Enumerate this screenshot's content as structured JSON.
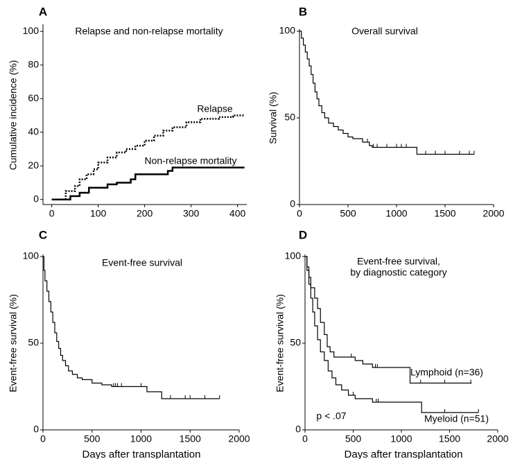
{
  "chart_data": [
    {
      "type": "step",
      "panel": "A",
      "title": "Relapse and non-relapse mortality",
      "y_label": "Cumulative incidence (%)",
      "xlim": [
        -10,
        420
      ],
      "ylim": [
        -3,
        103
      ],
      "xticks": [
        0,
        100,
        200,
        300,
        400
      ],
      "yticks": [
        0,
        20,
        40,
        60,
        80,
        100
      ],
      "series": [
        {
          "name": "Relapse",
          "color": "#000000",
          "style": "dotted",
          "width": 2.5,
          "x": [
            0,
            20,
            30,
            50,
            60,
            75,
            90,
            100,
            120,
            140,
            160,
            180,
            200,
            220,
            240,
            260,
            290,
            320,
            360,
            390,
            415
          ],
          "values": [
            0,
            0,
            5,
            8,
            12,
            15,
            18,
            22,
            25,
            28,
            30,
            32,
            35,
            38,
            41,
            43,
            46,
            48,
            49,
            50,
            50
          ]
        },
        {
          "name": "Non-relapse mortality",
          "color": "#000000",
          "style": "solid",
          "width": 2.5,
          "x": [
            0,
            30,
            40,
            60,
            80,
            120,
            140,
            170,
            180,
            250,
            260,
            415
          ],
          "values": [
            0,
            0,
            2,
            4,
            7,
            9,
            10,
            12,
            15,
            17,
            19,
            19
          ]
        }
      ]
    },
    {
      "type": "step",
      "panel": "B",
      "title": "Overall survival",
      "y_label": "Survival (%)",
      "xlim": [
        0,
        2000
      ],
      "ylim": [
        0,
        100
      ],
      "xticks": [
        0,
        500,
        1000,
        1500,
        2000
      ],
      "yticks": [
        0,
        50,
        100
      ],
      "series": [
        {
          "color": "#000000",
          "style": "solid",
          "width": 1.2,
          "x": [
            0,
            20,
            40,
            60,
            80,
            100,
            120,
            140,
            160,
            180,
            200,
            230,
            260,
            300,
            350,
            400,
            450,
            500,
            550,
            650,
            720,
            750,
            1210,
            1800
          ],
          "values": [
            100,
            96,
            92,
            88,
            84,
            80,
            75,
            70,
            65,
            61,
            57,
            53,
            50,
            47,
            45,
            43,
            41,
            39,
            38,
            36,
            34,
            33,
            29,
            29
          ],
          "censored": [
            700,
            760,
            800,
            900,
            1000,
            1050,
            1100,
            1300,
            1400,
            1500,
            1650,
            1750,
            1800
          ]
        }
      ]
    },
    {
      "type": "step",
      "panel": "C",
      "title": "Event-free survival",
      "y_label": "Event-free survival (%)",
      "x_label": "Days after transplantation",
      "xlim": [
        0,
        2000
      ],
      "ylim": [
        0,
        100
      ],
      "xticks": [
        0,
        500,
        1000,
        1500,
        2000
      ],
      "yticks": [
        0,
        50,
        100
      ],
      "series": [
        {
          "color": "#000000",
          "style": "solid",
          "width": 1.2,
          "x": [
            0,
            10,
            20,
            40,
            60,
            80,
            100,
            120,
            140,
            160,
            180,
            200,
            230,
            260,
            300,
            350,
            400,
            500,
            600,
            700,
            1060,
            1210,
            1800
          ],
          "values": [
            100,
            92,
            86,
            80,
            74,
            68,
            62,
            56,
            51,
            47,
            43,
            40,
            37,
            34,
            32,
            30,
            29,
            27,
            26,
            25,
            22,
            18,
            18
          ],
          "censored": [
            720,
            740,
            760,
            800,
            1000,
            1300,
            1450,
            1500,
            1650,
            1800
          ]
        }
      ]
    },
    {
      "type": "step",
      "panel": "D",
      "title": [
        "Event-free survival,",
        "by diagnostic category"
      ],
      "y_label": "Event-free survival (%)",
      "x_label": "Days after transplantation",
      "annotation": "p < .07",
      "xlim": [
        0,
        2000
      ],
      "ylim": [
        0,
        100
      ],
      "xticks": [
        0,
        500,
        1000,
        1500,
        2000
      ],
      "yticks": [
        0,
        50,
        100
      ],
      "series": [
        {
          "name": "Lymphoid (n=36)",
          "color": "#000000",
          "style": "solid",
          "width": 1.2,
          "x": [
            0,
            20,
            40,
            60,
            100,
            130,
            160,
            200,
            230,
            260,
            300,
            520,
            600,
            700,
            1090,
            1730
          ],
          "values": [
            100,
            94,
            88,
            82,
            76,
            70,
            62,
            55,
            48,
            45,
            42,
            40,
            38,
            36,
            27,
            27
          ],
          "censored": [
            480,
            730,
            750,
            1200,
            1450,
            1720
          ]
        },
        {
          "name": "Myeloid (n=51)",
          "color": "#000000",
          "style": "solid",
          "width": 1.2,
          "x": [
            0,
            20,
            40,
            60,
            80,
            100,
            130,
            160,
            200,
            240,
            280,
            320,
            380,
            450,
            520,
            700,
            1210,
            1800
          ],
          "values": [
            100,
            92,
            84,
            76,
            68,
            60,
            52,
            45,
            40,
            34,
            30,
            26,
            23,
            20,
            18,
            16,
            10,
            10
          ],
          "censored": [
            500,
            740,
            760,
            1450,
            1800
          ]
        }
      ]
    }
  ]
}
